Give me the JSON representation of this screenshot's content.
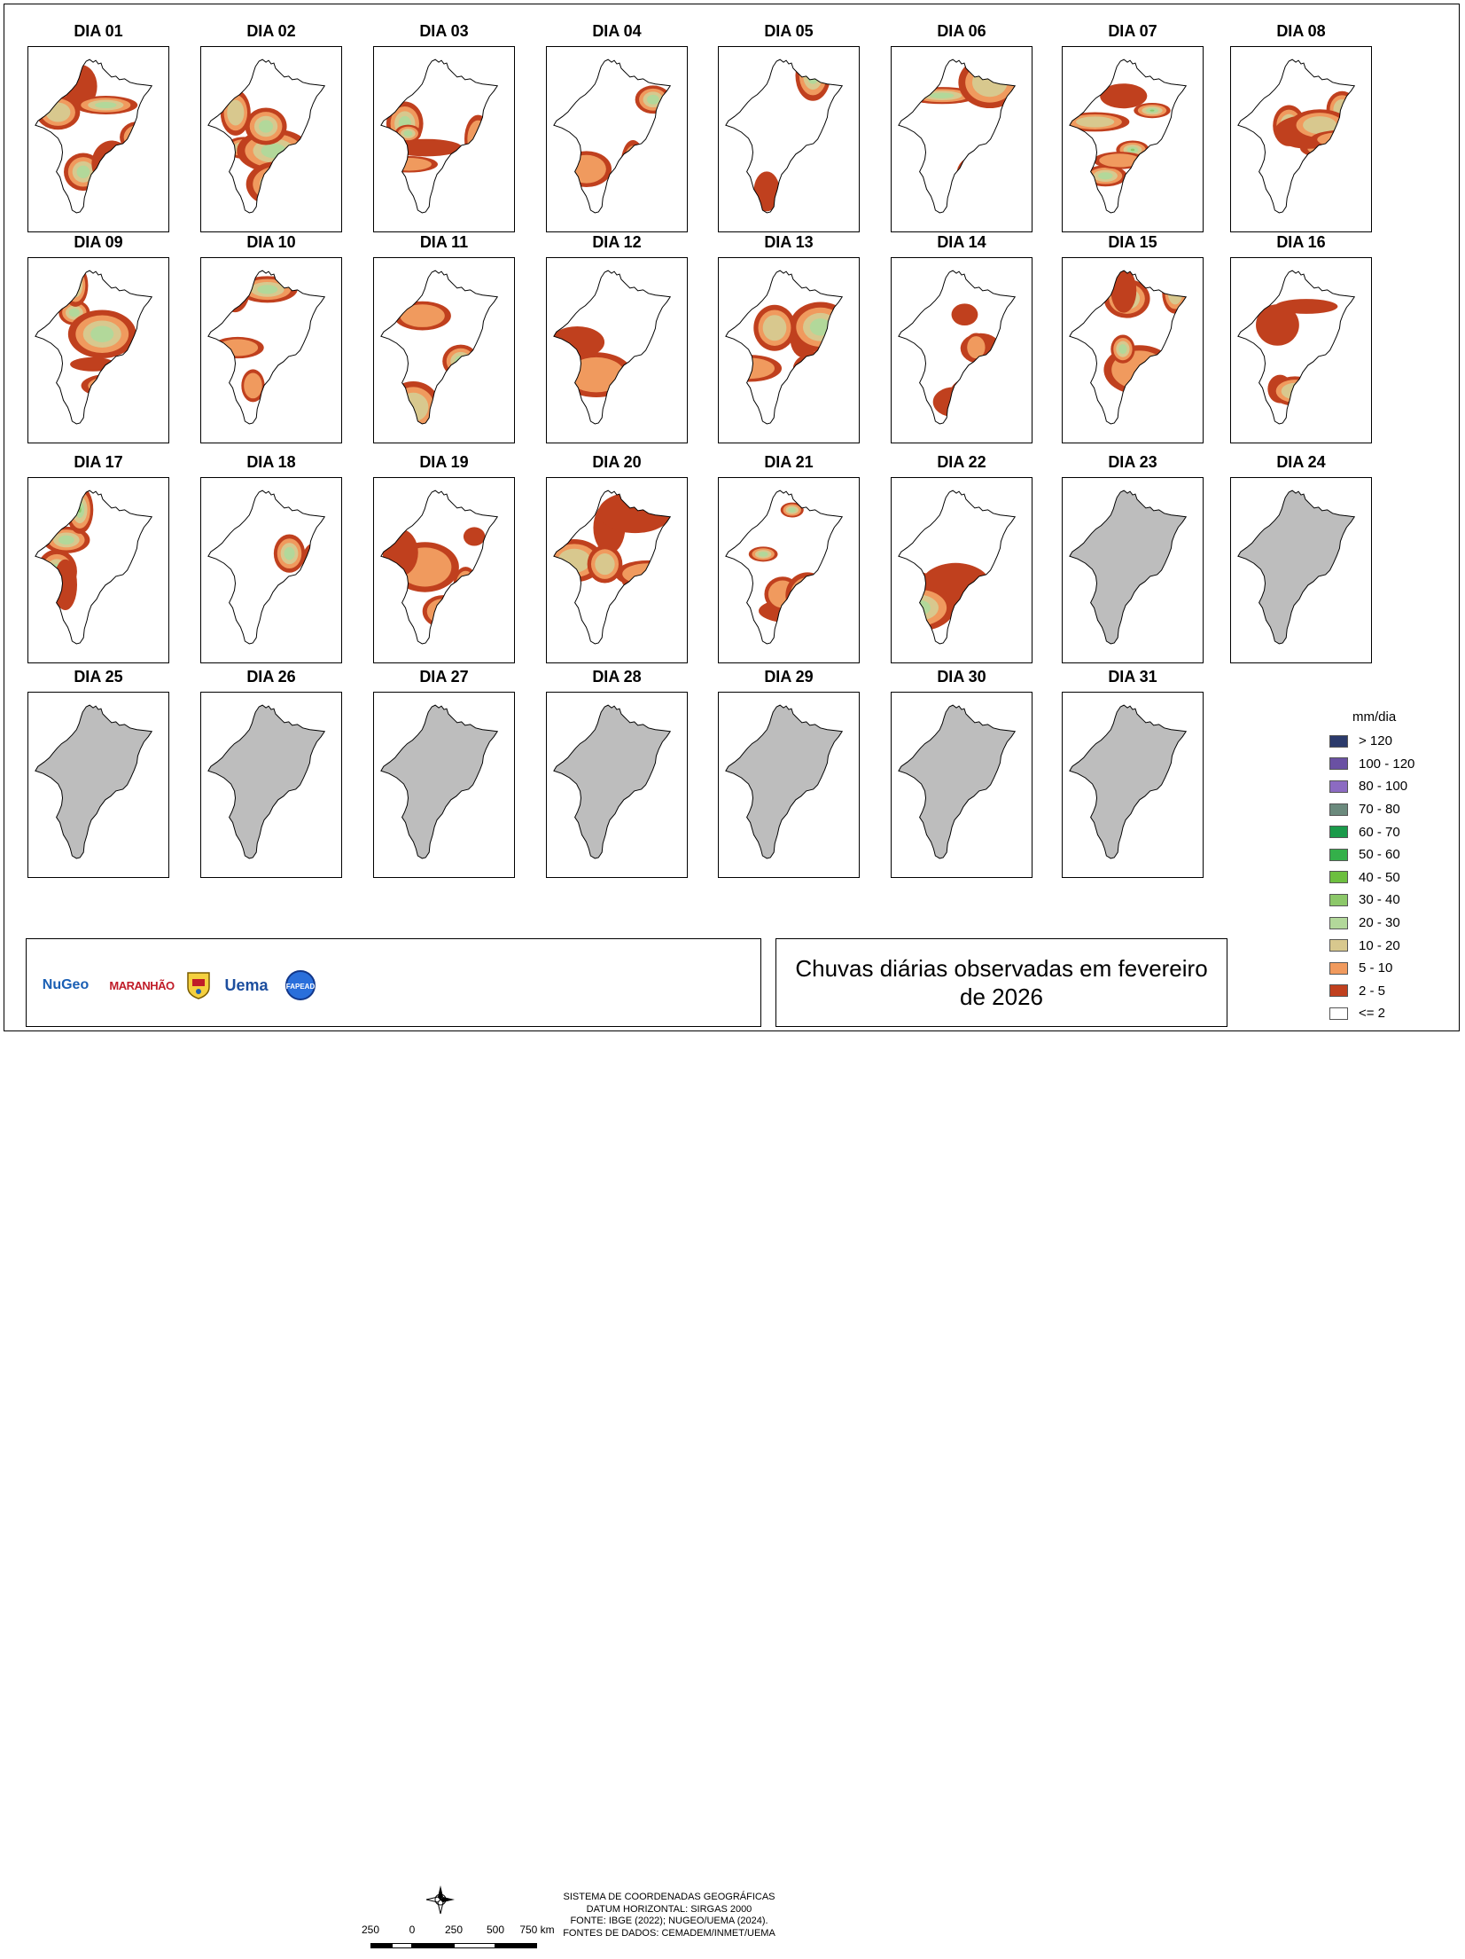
{
  "title": "Chuvas diárias observadas em fevereiro de 2026",
  "panels": [
    {
      "label": "DIA 01",
      "status": "observed"
    },
    {
      "label": "DIA 02",
      "status": "observed"
    },
    {
      "label": "DIA 03",
      "status": "observed"
    },
    {
      "label": "DIA 04",
      "status": "observed"
    },
    {
      "label": "DIA 05",
      "status": "observed"
    },
    {
      "label": "DIA 06",
      "status": "observed"
    },
    {
      "label": "DIA 07",
      "status": "observed"
    },
    {
      "label": "DIA 08",
      "status": "observed"
    },
    {
      "label": "DIA 09",
      "status": "observed"
    },
    {
      "label": "DIA 10",
      "status": "observed"
    },
    {
      "label": "DIA 11",
      "status": "observed"
    },
    {
      "label": "DIA 12",
      "status": "observed"
    },
    {
      "label": "DIA 13",
      "status": "observed"
    },
    {
      "label": "DIA 14",
      "status": "observed"
    },
    {
      "label": "DIA 15",
      "status": "observed"
    },
    {
      "label": "DIA 16",
      "status": "observed"
    },
    {
      "label": "DIA 17",
      "status": "observed"
    },
    {
      "label": "DIA 18",
      "status": "observed"
    },
    {
      "label": "DIA 19",
      "status": "observed"
    },
    {
      "label": "DIA 20",
      "status": "observed"
    },
    {
      "label": "DIA 21",
      "status": "observed"
    },
    {
      "label": "DIA 22",
      "status": "observed"
    },
    {
      "label": "DIA 23",
      "status": "no-data"
    },
    {
      "label": "DIA 24",
      "status": "no-data"
    },
    {
      "label": "DIA 25",
      "status": "no-data"
    },
    {
      "label": "DIA 26",
      "status": "no-data"
    },
    {
      "label": "DIA 27",
      "status": "no-data"
    },
    {
      "label": "DIA 28",
      "status": "no-data"
    },
    {
      "label": "DIA 29",
      "status": "no-data"
    },
    {
      "label": "DIA 30",
      "status": "no-data"
    },
    {
      "label": "DIA 31",
      "status": "no-data"
    }
  ],
  "legend": {
    "title": "mm/dia",
    "items": [
      {
        "label": "> 120",
        "color": "#2b3a6b"
      },
      {
        "label": "100 - 120",
        "color": "#6a51a3"
      },
      {
        "label": "80 - 100",
        "color": "#8c6bc2"
      },
      {
        "label": "70 - 80",
        "color": "#6b8a7d"
      },
      {
        "label": "60 - 70",
        "color": "#1a9a4a"
      },
      {
        "label": "50 - 60",
        "color": "#34b04a"
      },
      {
        "label": "40 - 50",
        "color": "#6dbf3f"
      },
      {
        "label": "30 - 40",
        "color": "#8cc869"
      },
      {
        "label": "20 - 30",
        "color": "#b2d89a"
      },
      {
        "label": "10 - 20",
        "color": "#d8c88e"
      },
      {
        "label": "5 - 10",
        "color": "#f09a5e"
      },
      {
        "label": "2 - 5",
        "color": "#c0401e"
      },
      {
        "label": "<= 2",
        "color": "#ffffff"
      }
    ]
  },
  "coordinate_info": {
    "lines": [
      "SISTEMA DE COORDENADAS GEOGRÁFICAS",
      "DATUM HORIZONTAL: SIRGAS 2000",
      "FONTE: IBGE (2022); NUGEO/UEMA (2024).",
      "FONTES DE DADOS: CEMADEM/INMET/UEMA"
    ]
  },
  "scale_bar": {
    "labels": [
      "250",
      "0",
      "250",
      "500",
      "750 km"
    ]
  },
  "logos": {
    "nugeo": "NuGeo",
    "maranhao": "MARANHÃO",
    "uema": "Uema",
    "fapead": "FAPEAD"
  },
  "colors": {
    "no_data_fill": "#bdbdbd",
    "state_outline": "#000000"
  }
}
